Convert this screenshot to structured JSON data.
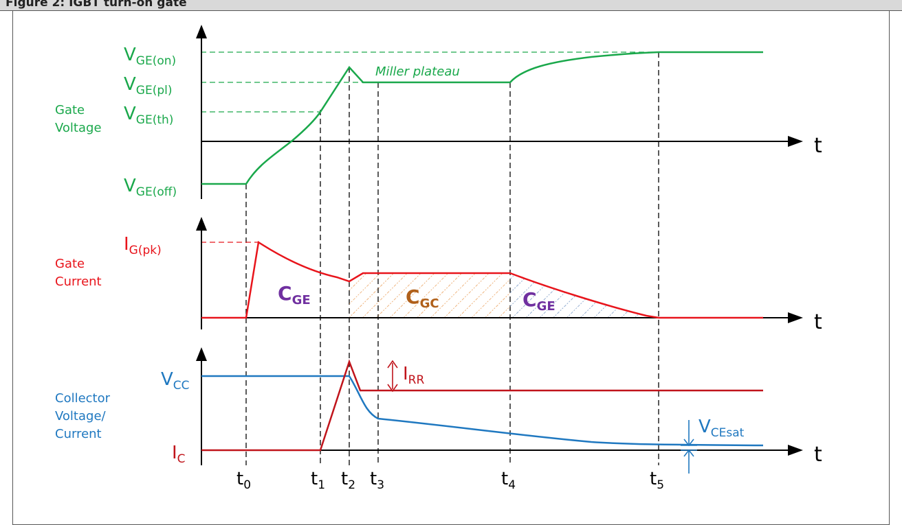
{
  "header": {
    "title": "Figure 2: IGBT turn-on gate"
  },
  "colors": {
    "gate_voltage": "#1aa84b",
    "gate_current": "#e8141b",
    "collector_voltage": "#1f78c0",
    "collector_current": "#c0141b",
    "capacitance_label": "#7030a0",
    "cgc_label": "#b0601a",
    "axis": "#000000"
  },
  "gate_voltage": {
    "axis_label_line1": "Gate",
    "axis_label_line2": "Voltage",
    "levels": [
      {
        "main": "V",
        "sub": "GE(on)"
      },
      {
        "main": "V",
        "sub": "GE(pl)"
      },
      {
        "main": "V",
        "sub": "GE(th)"
      },
      {
        "main": "V",
        "sub": "GE(off)"
      }
    ],
    "annotation": "Miller plateau"
  },
  "gate_current": {
    "axis_label_line1": "Gate",
    "axis_label_line2": "Current",
    "peak": {
      "main": "I",
      "sub": "G(pk)"
    },
    "regions": [
      {
        "main": "C",
        "sub": "GE"
      },
      {
        "main": "C",
        "sub": "GC"
      },
      {
        "main": "C",
        "sub": "GE"
      }
    ]
  },
  "collector": {
    "axis_label_line1": "Collector",
    "axis_label_line2": "Voltage/",
    "axis_label_line3": "Current",
    "vcc": {
      "main": "V",
      "sub": "CC"
    },
    "ic": {
      "main": "I",
      "sub": "C"
    },
    "irr": {
      "main": "I",
      "sub": "RR"
    },
    "vcesat": {
      "main": "V",
      "sub": "CEsat"
    }
  },
  "time_axis": {
    "label": "t",
    "markers": [
      {
        "main": "t",
        "sub": "0"
      },
      {
        "main": "t",
        "sub": "1"
      },
      {
        "main": "t",
        "sub": "2"
      },
      {
        "main": "t",
        "sub": "3"
      },
      {
        "main": "t",
        "sub": "4"
      },
      {
        "main": "t",
        "sub": "5"
      }
    ]
  }
}
